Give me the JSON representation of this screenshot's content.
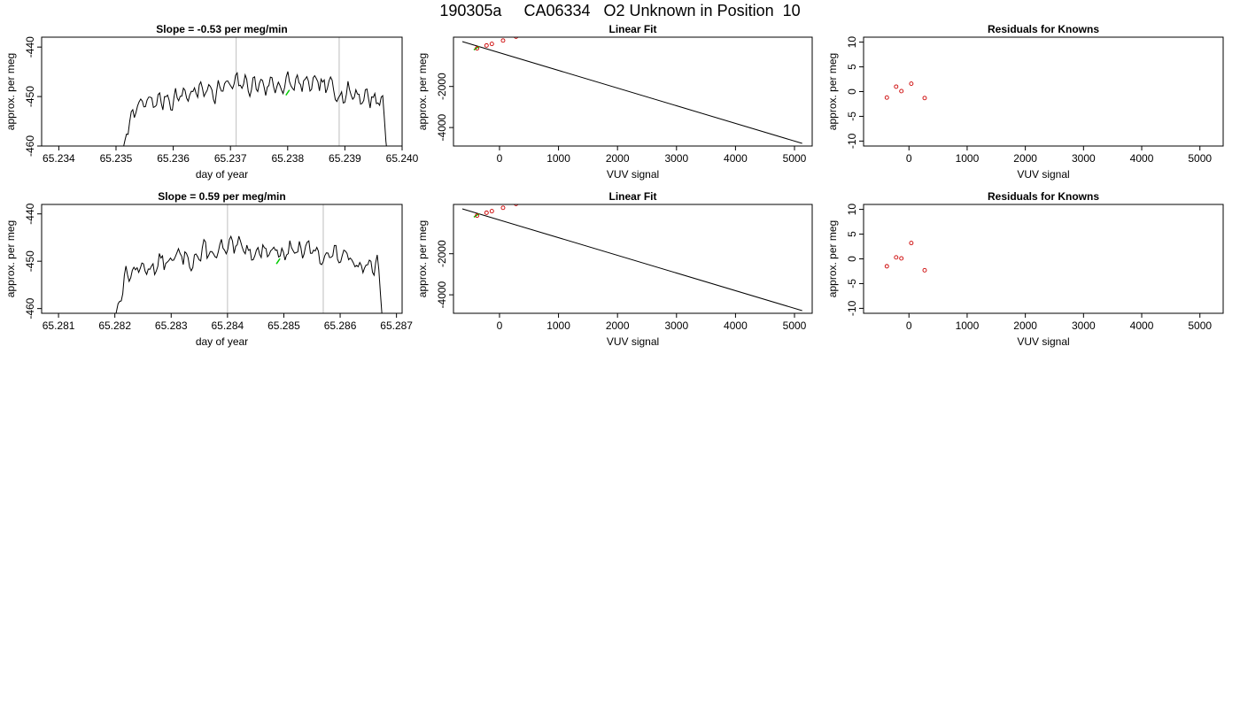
{
  "page_title": "190305a     CA06334   O2 Unknown in Position  10",
  "colors": {
    "trace": "#000000",
    "marker": "#00cc00",
    "residual": "#cc0000",
    "vline": "#bebebe",
    "fitline": "#000000"
  },
  "chart_data": [
    {
      "type": "line",
      "title": "Slope =  -0.53  per meg/min",
      "xlabel": "day of year",
      "ylabel": "approx. per meg",
      "xlim": [
        65.2337,
        65.24
      ],
      "ylim": [
        -460,
        -438
      ],
      "xticks": [
        "65.234",
        "65.235",
        "65.236",
        "65.237",
        "65.238",
        "65.239",
        "65.240"
      ],
      "xtick_values": [
        65.234,
        65.235,
        65.236,
        65.237,
        65.238,
        65.239,
        65.24
      ],
      "yticks": [
        "-440",
        "-450",
        "-460"
      ],
      "ytick_values": [
        -440,
        -450,
        -460
      ],
      "vlines": [
        65.2371,
        65.2389
      ],
      "trace_start": 65.2351,
      "trace_end": 65.2398,
      "trace_seed": 7,
      "marker": {
        "x": 65.238,
        "y": -449.2
      }
    },
    {
      "type": "scatter",
      "title": "Linear Fit",
      "xlabel": "VUV signal",
      "ylabel": "approx. per meg",
      "xlim": [
        -780,
        5300
      ],
      "ylim": [
        -4900,
        400
      ],
      "xticks": [
        "0",
        "1000",
        "2000",
        "3000",
        "4000",
        "5000"
      ],
      "xtick_values": [
        0,
        1000,
        2000,
        3000,
        4000,
        5000
      ],
      "yticks": [
        "-2000",
        "-4000"
      ],
      "ytick_values": [
        -2000,
        -4000
      ],
      "fit_line": {
        "x": [
          -630,
          5130
        ],
        "y": [
          183,
          -4771
        ]
      },
      "points": {
        "x": [
          -380,
          -220,
          -130,
          60,
          280
        ],
        "y": [
          -144,
          -4,
          73,
          237,
          426
        ]
      },
      "highlight": {
        "x": -390,
        "y": -134
      }
    },
    {
      "type": "scatter",
      "title": "Residuals for Knowns",
      "xlabel": "VUV signal",
      "ylabel": "approx. per meg",
      "xlim": [
        -780,
        5400
      ],
      "ylim": [
        -11,
        11
      ],
      "xticks": [
        "0",
        "1000",
        "2000",
        "3000",
        "4000",
        "5000"
      ],
      "xtick_values": [
        0,
        1000,
        2000,
        3000,
        4000,
        5000
      ],
      "yticks": [
        "10",
        "5",
        "0",
        "-5",
        "-10"
      ],
      "ytick_values": [
        10,
        5,
        0,
        -5,
        -10
      ],
      "points": {
        "x": [
          -380,
          -220,
          -130,
          40,
          270
        ],
        "y": [
          -1.2,
          1.0,
          0.1,
          1.6,
          -1.3
        ]
      }
    },
    {
      "type": "line",
      "title": "Slope =  0.59  per meg/min",
      "xlabel": "day of year",
      "ylabel": "approx. per meg",
      "xlim": [
        65.2807,
        65.2871
      ],
      "ylim": [
        -461,
        -438
      ],
      "xticks": [
        "65.281",
        "65.282",
        "65.283",
        "65.284",
        "65.285",
        "65.286",
        "65.287"
      ],
      "xtick_values": [
        65.281,
        65.282,
        65.283,
        65.284,
        65.285,
        65.286,
        65.287
      ],
      "yticks": [
        "-440",
        "-450",
        "-460"
      ],
      "ytick_values": [
        -440,
        -450,
        -460
      ],
      "vlines": [
        65.284,
        65.2857
      ],
      "trace_start": 65.282,
      "trace_end": 65.2868,
      "trace_seed": 13,
      "marker": {
        "x": 65.2849,
        "y": -450.0
      }
    },
    {
      "type": "scatter",
      "title": "Linear Fit",
      "xlabel": "VUV signal",
      "ylabel": "approx. per meg",
      "xlim": [
        -780,
        5300
      ],
      "ylim": [
        -4900,
        400
      ],
      "xticks": [
        "0",
        "1000",
        "2000",
        "3000",
        "4000",
        "5000"
      ],
      "xtick_values": [
        0,
        1000,
        2000,
        3000,
        4000,
        5000
      ],
      "yticks": [
        "-2000",
        "-4000"
      ],
      "ytick_values": [
        -2000,
        -4000
      ],
      "fit_line": {
        "x": [
          -630,
          5130
        ],
        "y": [
          183,
          -4771
        ]
      },
      "points": {
        "x": [
          -380,
          -220,
          -130,
          60,
          280
        ],
        "y": [
          -144,
          -4,
          73,
          237,
          426
        ]
      },
      "highlight": {
        "x": -390,
        "y": -134
      }
    },
    {
      "type": "scatter",
      "title": "Residuals for Knowns",
      "xlabel": "VUV signal",
      "ylabel": "approx. per meg",
      "xlim": [
        -780,
        5400
      ],
      "ylim": [
        -11,
        11
      ],
      "xticks": [
        "0",
        "1000",
        "2000",
        "3000",
        "4000",
        "5000"
      ],
      "xtick_values": [
        0,
        1000,
        2000,
        3000,
        4000,
        5000
      ],
      "yticks": [
        "10",
        "5",
        "0",
        "-5",
        "-10"
      ],
      "ytick_values": [
        10,
        5,
        0,
        -5,
        -10
      ],
      "points": {
        "x": [
          -380,
          -220,
          -130,
          40,
          270
        ],
        "y": [
          -1.5,
          0.3,
          0.1,
          3.2,
          -2.3
        ]
      }
    }
  ]
}
